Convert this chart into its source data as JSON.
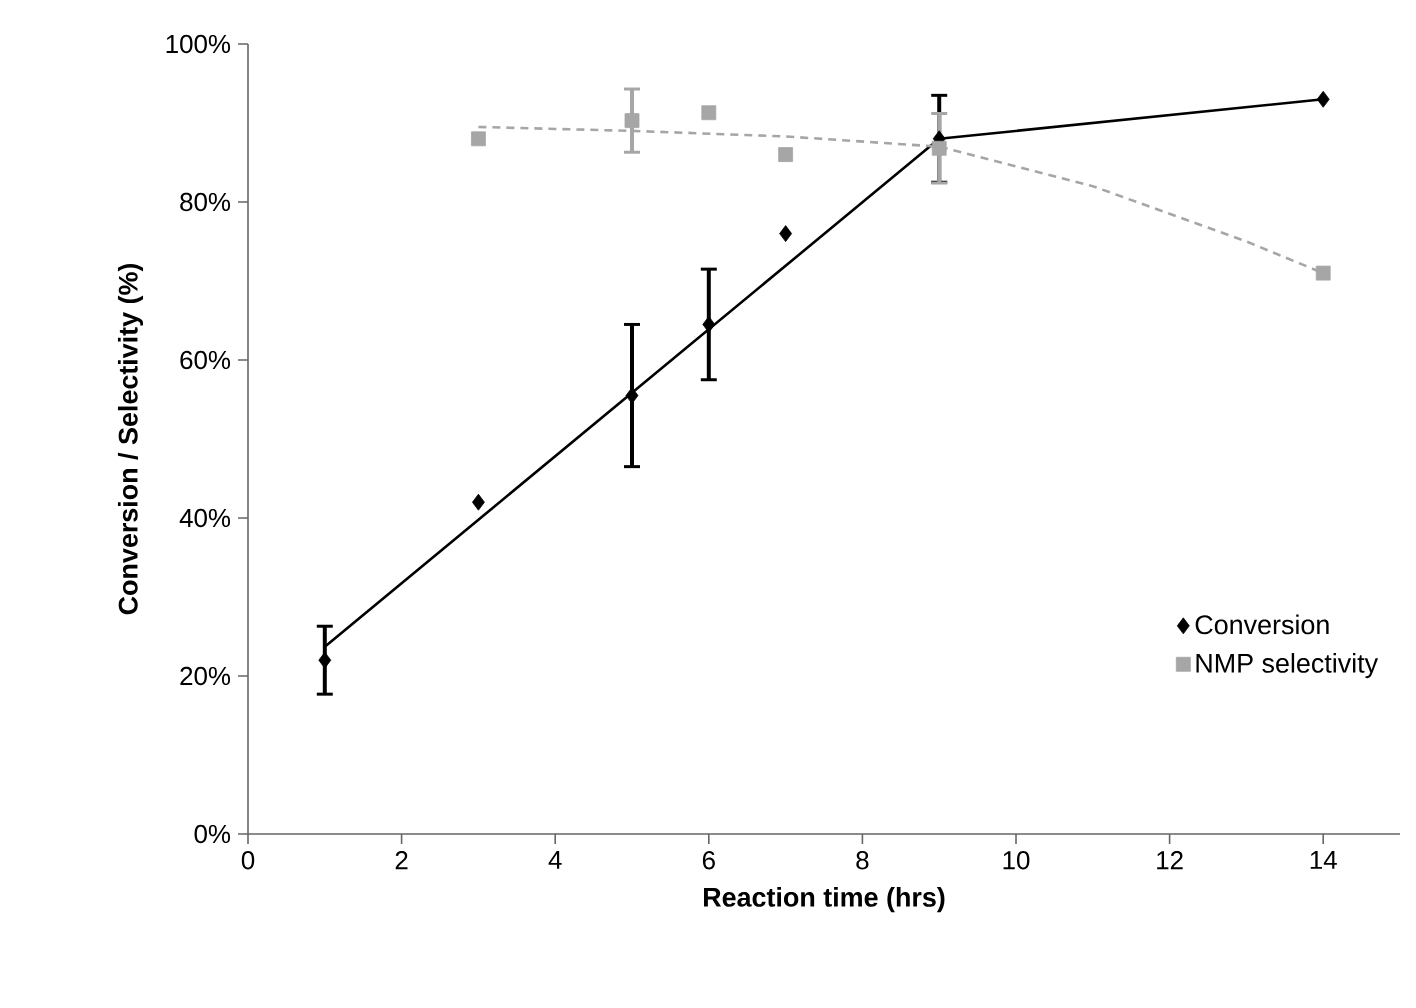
{
  "chart_data": {
    "type": "scatter",
    "xlabel": "Reaction time (hrs)",
    "ylabel": "Conversion / Selectivity (%)",
    "xlim": [
      0,
      15
    ],
    "ylim": [
      0,
      100
    ],
    "xticks": [
      0,
      2,
      4,
      6,
      8,
      10,
      12,
      14
    ],
    "yticks": [
      {
        "value": 0,
        "label": "0%"
      },
      {
        "value": 20,
        "label": "20%"
      },
      {
        "value": 40,
        "label": "40%"
      },
      {
        "value": 60,
        "label": "60%"
      },
      {
        "value": 80,
        "label": "80%"
      },
      {
        "value": 100,
        "label": "100%"
      }
    ],
    "grid": false,
    "legend": "bottom right",
    "series": [
      {
        "type": "line",
        "color": "#000000",
        "marker": "none",
        "line_style": "solid",
        "x": [
          1,
          9,
          14
        ],
        "values": [
          23.7,
          88,
          93
        ]
      },
      {
        "type": "line",
        "color": "#a6a6a6",
        "marker": "none",
        "line_style": "dashed",
        "x": [
          3,
          5,
          7,
          9,
          11,
          13,
          14
        ],
        "values": [
          89.5,
          89,
          88.3,
          87,
          82,
          75,
          71
        ]
      },
      {
        "name": "Conversion",
        "type": "scatter",
        "color": "#000000",
        "marker": "diamond",
        "x": [
          1,
          3,
          5,
          6,
          7,
          9,
          14
        ],
        "values": [
          22,
          42,
          55.5,
          64.5,
          76,
          88,
          93
        ],
        "errors": [
          4.3,
          null,
          9,
          7,
          null,
          5.5,
          null
        ]
      },
      {
        "name": "NMP selectivity",
        "type": "scatter",
        "color": "#a6a6a6",
        "marker": "square",
        "x": [
          3,
          5,
          6,
          7,
          9,
          14
        ],
        "values": [
          88,
          90.3,
          91.3,
          86,
          86.8,
          71
        ],
        "errors": [
          null,
          4,
          null,
          null,
          4.4,
          null
        ]
      }
    ]
  }
}
